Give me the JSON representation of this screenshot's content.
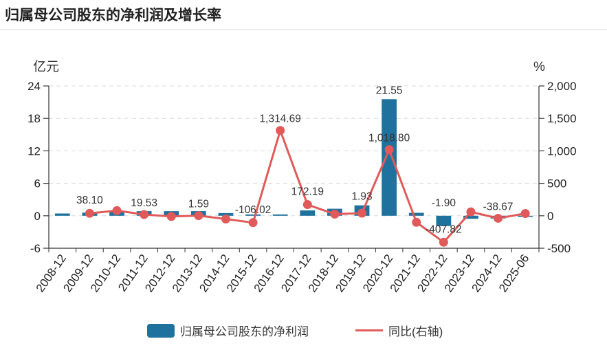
{
  "title": "归属母公司股东的净利润及增长率",
  "left_unit": "亿元",
  "right_unit": "%",
  "legend": {
    "bar_label": "归属母公司股东的净利润",
    "line_label": "同比(右轴)"
  },
  "colors": {
    "bar": "#20729e",
    "line": "#e05a5a",
    "grid": "#d8d8d8",
    "axis": "#333333"
  },
  "chart_data": {
    "type": "bar",
    "categories": [
      "2008-12",
      "2009-12",
      "2010-12",
      "2011-12",
      "2012-12",
      "2013-12",
      "2014-12",
      "2015-12",
      "2016-12",
      "2017-12",
      "2018-12",
      "2019-12",
      "2020-12",
      "2021-12",
      "2022-12",
      "2023-12",
      "2024-12",
      "2025-06"
    ],
    "series": [
      {
        "name": "归属母公司股东的净利润",
        "axis": "left",
        "type": "bar",
        "values": [
          0.42,
          0.58,
          0.7,
          0.85,
          0.85,
          0.86,
          0.5,
          0.25,
          0.25,
          1.0,
          1.3,
          1.93,
          21.55,
          0.55,
          -1.9,
          -0.55,
          -0.5,
          -0.2
        ]
      },
      {
        "name": "同比(右轴)",
        "axis": "right",
        "type": "line",
        "values": [
          null,
          38.1,
          80,
          19.53,
          -10,
          1.59,
          -50,
          -106.02,
          1314.69,
          172.19,
          25,
          40,
          1018.8,
          -100,
          -407.82,
          60,
          -38.67,
          35
        ]
      }
    ],
    "data_labels": [
      {
        "series": 1,
        "index": 1,
        "text": "38.10"
      },
      {
        "series": 1,
        "index": 3,
        "text": "19.53"
      },
      {
        "series": 1,
        "index": 5,
        "text": "1.59"
      },
      {
        "series": 1,
        "index": 7,
        "text": "-106.02"
      },
      {
        "series": 1,
        "index": 8,
        "text": "1,314.69"
      },
      {
        "series": 1,
        "index": 9,
        "text": "172.19"
      },
      {
        "series": 0,
        "index": 11,
        "text": "1.93"
      },
      {
        "series": 0,
        "index": 12,
        "text": "21.55"
      },
      {
        "series": 1,
        "index": 12,
        "text": "1,018.80"
      },
      {
        "series": 0,
        "index": 14,
        "text": "-1.90"
      },
      {
        "series": 1,
        "index": 14,
        "text": "-407.82"
      },
      {
        "series": 1,
        "index": 16,
        "text": "-38.67"
      }
    ],
    "left_axis": {
      "min": -6,
      "max": 24,
      "ticks": [
        -6,
        0,
        6,
        12,
        18,
        24
      ],
      "tick_labels": [
        "-6",
        "0",
        "6",
        "12",
        "18",
        "24"
      ]
    },
    "right_axis": {
      "min": -500,
      "max": 2000,
      "ticks": [
        -500,
        0,
        500,
        1000,
        1500,
        2000
      ],
      "tick_labels": [
        "-500",
        "0",
        "500",
        "1,000",
        "1,500",
        "2,000"
      ]
    },
    "grid": true,
    "legend_position": "bottom"
  }
}
